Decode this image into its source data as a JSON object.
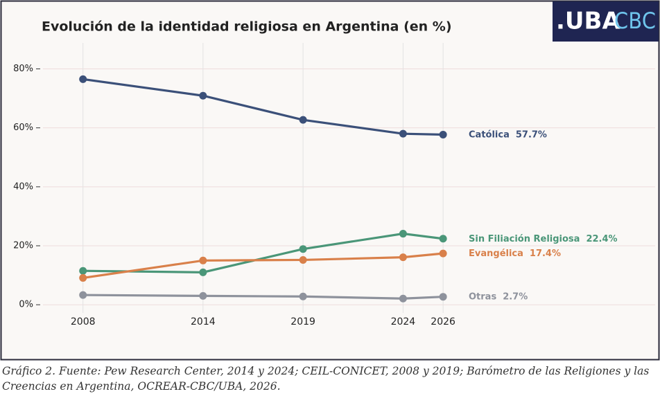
{
  "chart_data": {
    "type": "line",
    "title": "Evolución de la identidad religiosa en Argentina (en %)",
    "x": [
      2008,
      2014,
      2019,
      2024,
      2026
    ],
    "xlim": [
      2006,
      2036.6
    ],
    "xticks": [
      2008,
      2014,
      2019,
      2024,
      2026
    ],
    "ylim": [
      -7,
      88.8
    ],
    "yticks": [
      {
        "value": 0,
        "label": "0%"
      },
      {
        "value": 20,
        "label": "20%"
      },
      {
        "value": 40,
        "label": "40%"
      },
      {
        "value": 60,
        "label": "60%"
      },
      {
        "value": 80,
        "label": "80%"
      }
    ],
    "grid": true,
    "series": [
      {
        "name": "Católica",
        "color": "#3b5079",
        "values": [
          76.5,
          70.9,
          62.7,
          58.0,
          57.7
        ],
        "value_labels": [
          null,
          null,
          null,
          null,
          "57.7%"
        ]
      },
      {
        "name": "Sin Filiación Religiosa",
        "color": "#4a9678",
        "values": [
          11.5,
          11.0,
          18.9,
          24.1,
          22.4
        ],
        "value_labels": [
          null,
          null,
          null,
          null,
          "22.4%"
        ]
      },
      {
        "name": "Evangélica",
        "color": "#d9804a",
        "values": [
          9.1,
          15.0,
          15.2,
          16.1,
          17.4
        ],
        "value_labels": [
          null,
          null,
          null,
          null,
          "17.4%"
        ]
      },
      {
        "name": "Otras",
        "color": "#8e929c",
        "values": [
          3.3,
          3.0,
          2.8,
          2.1,
          2.7
        ],
        "value_labels": [
          null,
          null,
          null,
          null,
          "2.7%"
        ]
      }
    ]
  },
  "logo": {
    "left": ".UBA",
    "right": "CBC"
  },
  "caption": "Gráfico 2. Fuente: Pew Research Center, 2014 y 2024; CEIL-CONICET, 2008 y 2019; Barómetro de las Religiones y las Creencias en Argentina, OCREAR-CBC/UBA, 2026."
}
